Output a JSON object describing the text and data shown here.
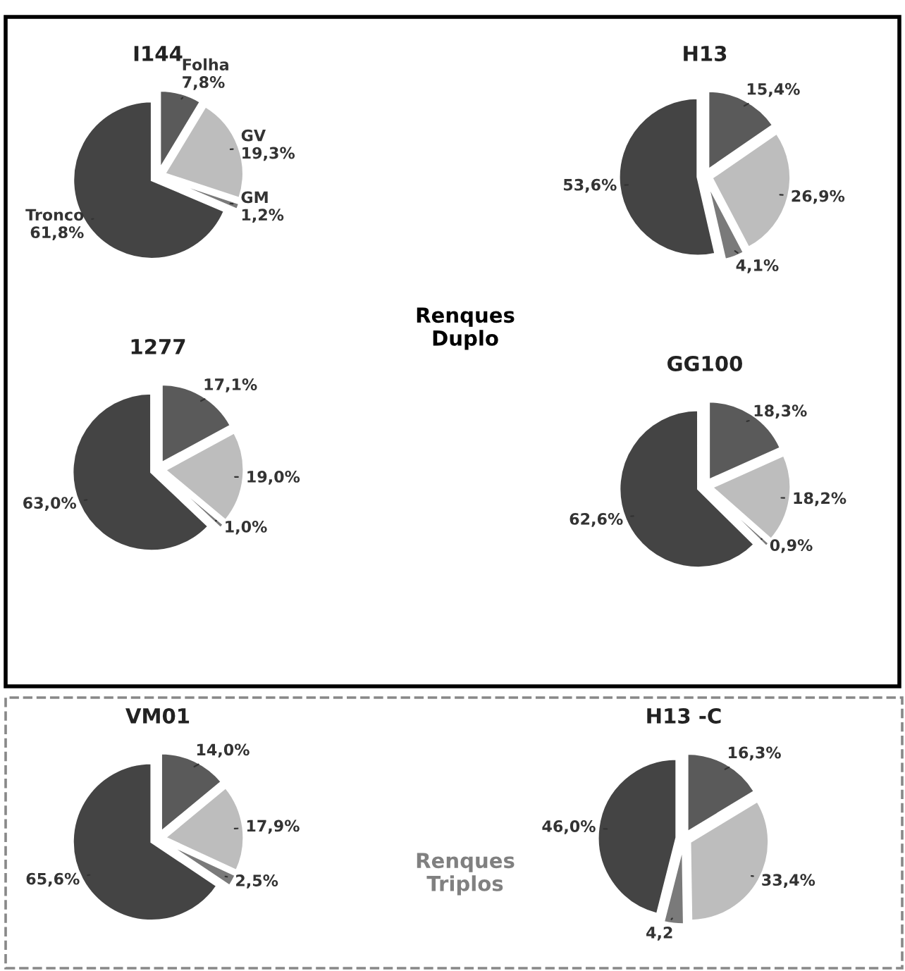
{
  "chart_data": [
    {
      "type": "pie",
      "title": "I144",
      "categories": [
        "Folha",
        "GV",
        "GM",
        "Tronco"
      ],
      "values": [
        7.8,
        19.3,
        1.2,
        61.8
      ],
      "value_labels": [
        "7,8%",
        "19,3%",
        "1,2%",
        "61,8%"
      ],
      "colors": [
        "#5a5a5a",
        "#bdbdbd",
        "#7a7a7a",
        "#444444"
      ]
    },
    {
      "type": "pie",
      "title": "H13",
      "categories": [
        null,
        null,
        null,
        null
      ],
      "values": [
        15.4,
        26.9,
        4.1,
        53.6
      ],
      "value_labels": [
        "15,4%",
        "26,9%",
        "4,1%",
        "53,6%"
      ],
      "colors": [
        "#5a5a5a",
        "#bdbdbd",
        "#7a7a7a",
        "#444444"
      ]
    },
    {
      "type": "pie",
      "title": "1277",
      "categories": [
        null,
        null,
        null,
        null
      ],
      "values": [
        17.1,
        19.0,
        1.0,
        63.0
      ],
      "value_labels": [
        "17,1%",
        "19,0%",
        "1,0%",
        "63,0%"
      ],
      "colors": [
        "#5a5a5a",
        "#bdbdbd",
        "#7a7a7a",
        "#444444"
      ],
      "annotations": [
        "Renques\nDuplo"
      ]
    },
    {
      "type": "pie",
      "title": "GG100",
      "categories": [
        null,
        null,
        null,
        null
      ],
      "values": [
        18.3,
        18.2,
        0.9,
        62.6
      ],
      "value_labels": [
        "18,3%",
        "18,2%",
        "0,9%",
        "62,6%"
      ],
      "colors": [
        "#5a5a5a",
        "#bdbdbd",
        "#7a7a7a",
        "#444444"
      ]
    },
    {
      "type": "pie",
      "title": "VM01",
      "categories": [
        null,
        null,
        null,
        null
      ],
      "values": [
        14.0,
        17.9,
        2.5,
        65.6
      ],
      "value_labels": [
        "14,0%",
        "17,9%",
        "2,5%",
        "65,6%"
      ],
      "colors": [
        "#5a5a5a",
        "#bdbdbd",
        "#7a7a7a",
        "#444444"
      ],
      "annotations": [
        "Renques\nTriplos"
      ]
    },
    {
      "type": "pie",
      "title": "H13 -C",
      "categories": [
        null,
        null,
        null,
        null
      ],
      "values": [
        16.3,
        33.4,
        4.2,
        46.0
      ],
      "value_labels": [
        "16,3%",
        "33,4%",
        "4,2",
        "46,0%"
      ],
      "colors": [
        "#5a5a5a",
        "#bdbdbd",
        "#7a7a7a",
        "#444444"
      ]
    }
  ]
}
